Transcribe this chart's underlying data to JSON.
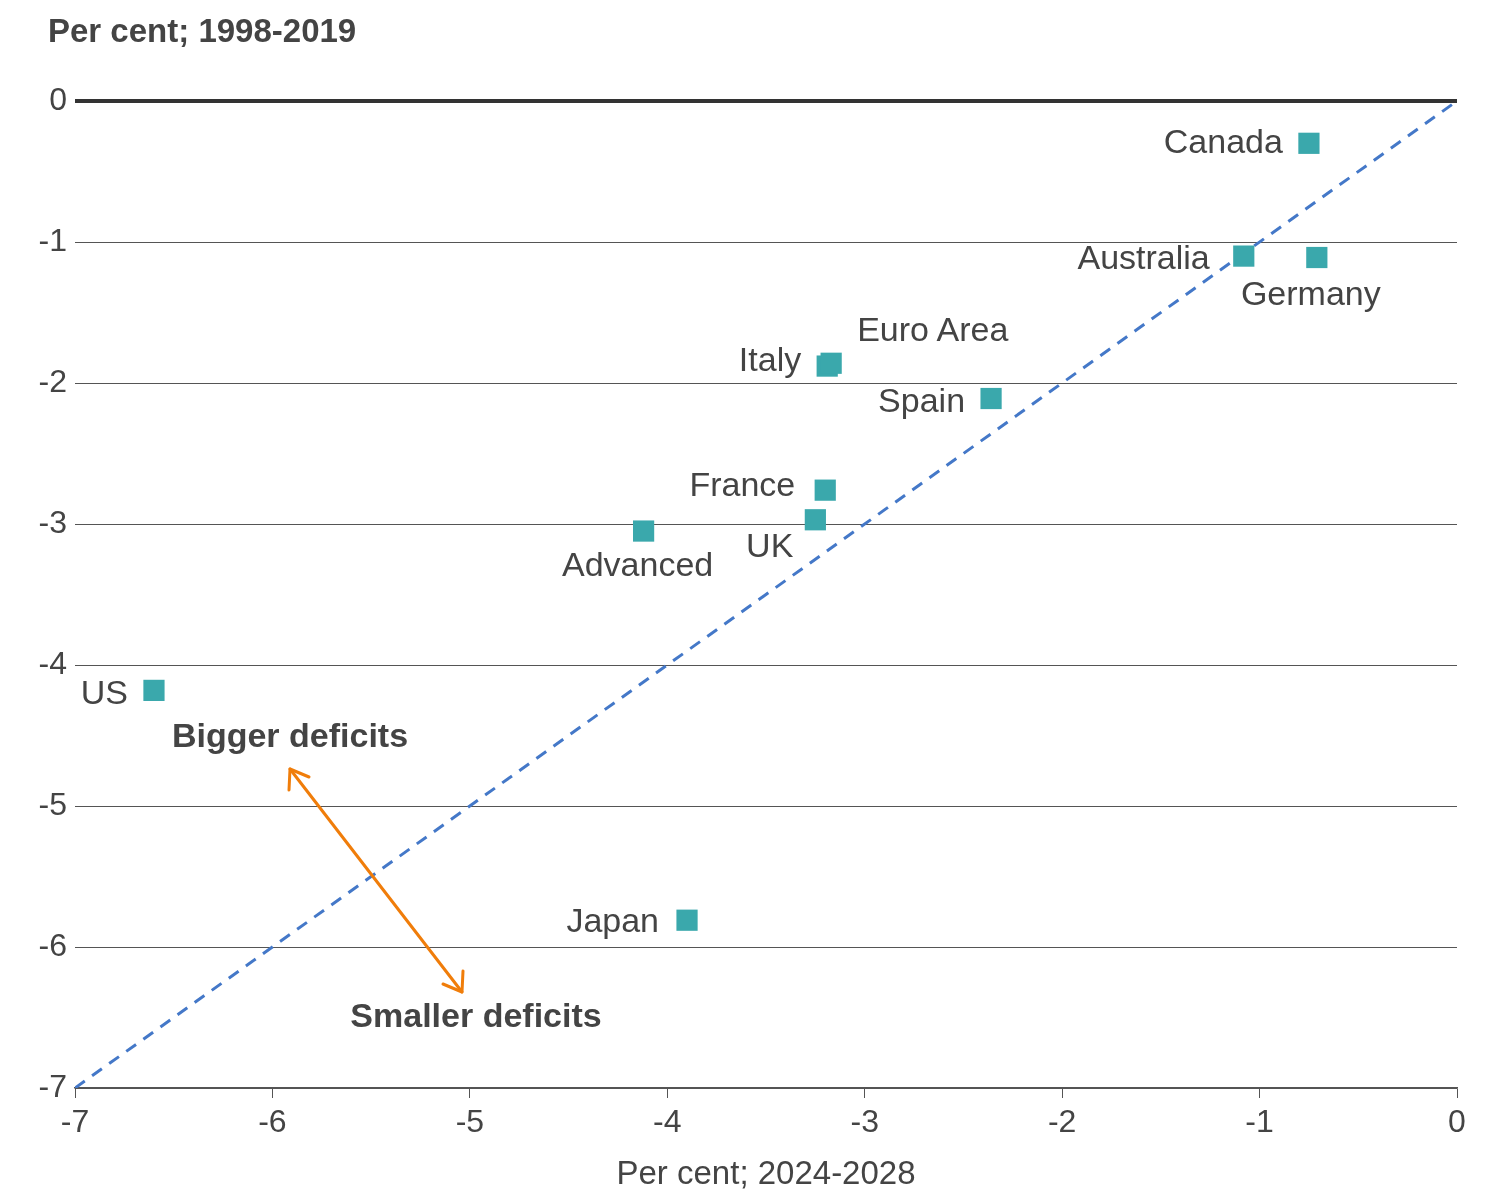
{
  "chart_data": {
    "type": "scatter",
    "xlabel": "Per cent; 2024-2028",
    "ylabel": "Per cent; 1998-2019",
    "xlim": [
      -7,
      0
    ],
    "xticks": [
      -7,
      -6,
      -5,
      -4,
      -3,
      -2,
      -1,
      0
    ],
    "ylim": [
      -7,
      0
    ],
    "yticks": [
      -7,
      -6,
      -5,
      -4,
      -3,
      -2,
      -1,
      0
    ],
    "grid": "y",
    "legend": false,
    "marker": "square",
    "series": [
      {
        "name": "Canada",
        "color": "#3aa8ac",
        "x": [
          -0.75
        ],
        "values": [
          -0.3
        ]
      },
      {
        "name": "Australia",
        "color": "#3aa8ac",
        "x": [
          -1.08
        ],
        "values": [
          -1.1
        ]
      },
      {
        "name": "Germany",
        "color": "#3aa8ac",
        "x": [
          -0.71
        ],
        "values": [
          -1.11
        ]
      },
      {
        "name": "Euro Area",
        "color": "#3aa8ac",
        "x": [
          -3.17
        ],
        "values": [
          -1.86
        ]
      },
      {
        "name": "Italy",
        "color": "#3aa8ac",
        "x": [
          -3.19
        ],
        "values": [
          -1.88
        ]
      },
      {
        "name": "Spain",
        "color": "#3aa8ac",
        "x": [
          -2.36
        ],
        "values": [
          -2.11
        ]
      },
      {
        "name": "France",
        "color": "#3aa8ac",
        "x": [
          -3.2
        ],
        "values": [
          -2.76
        ]
      },
      {
        "name": "UK",
        "color": "#3aa8ac",
        "x": [
          -3.25
        ],
        "values": [
          -2.97
        ]
      },
      {
        "name": "Advanced",
        "color": "#3aa8ac",
        "x": [
          -4.12
        ],
        "values": [
          -3.05
        ]
      },
      {
        "name": "US",
        "color": "#3aa8ac",
        "x": [
          -6.6
        ],
        "values": [
          -4.18
        ]
      },
      {
        "name": "Japan",
        "color": "#3aa8ac",
        "x": [
          -3.9
        ],
        "values": [
          -5.81
        ]
      },
      {
        "type": "line",
        "color": "#4478c8",
        "line_style": "dashed",
        "marker": "none",
        "x": [
          -7,
          0
        ],
        "values": [
          -7,
          0
        ]
      }
    ],
    "ref_lines": [
      {
        "axis": "y",
        "value": 0,
        "color": "#333333"
      }
    ],
    "annotations": [
      "Bigger deficits",
      "Smaller deficits"
    ]
  }
}
